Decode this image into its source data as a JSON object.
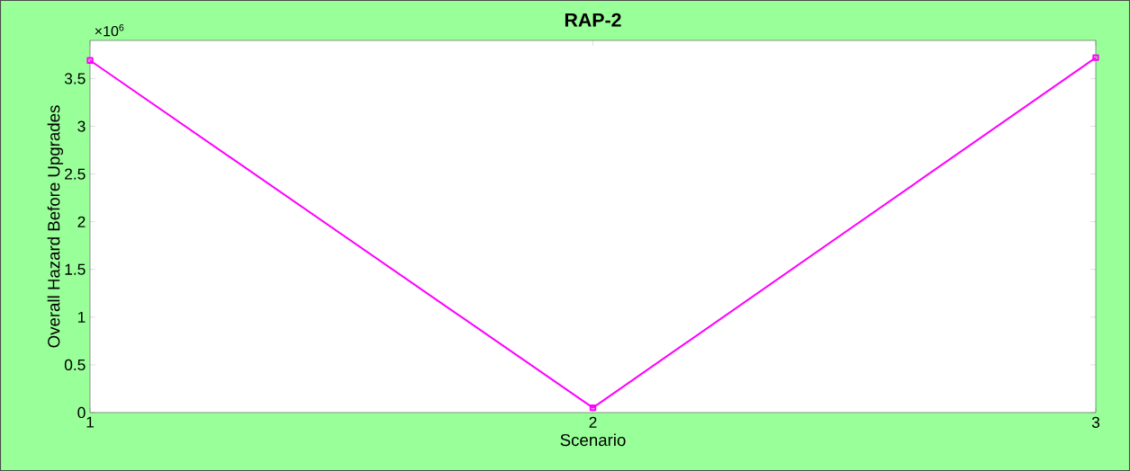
{
  "chart_data": {
    "type": "line",
    "title": "RAP-2",
    "xlabel": "Scenario",
    "ylabel": "Overall Hazard Before Upgrades",
    "annotations": [
      "×10$^{6}$"
    ],
    "x": [
      1,
      2,
      3
    ],
    "series": [
      {
        "color": "#ff00ff",
        "values": [
          3.69,
          0.05,
          3.72
        ]
      }
    ],
    "marker": "square",
    "line_style": "solid",
    "grid": false,
    "xlim": [
      1,
      3
    ],
    "xticks": [
      1,
      2,
      3
    ],
    "ylim": [
      0,
      3.9
    ],
    "yticks": [
      0,
      0.5,
      1,
      1.5,
      2,
      2.5,
      3,
      3.5
    ]
  }
}
